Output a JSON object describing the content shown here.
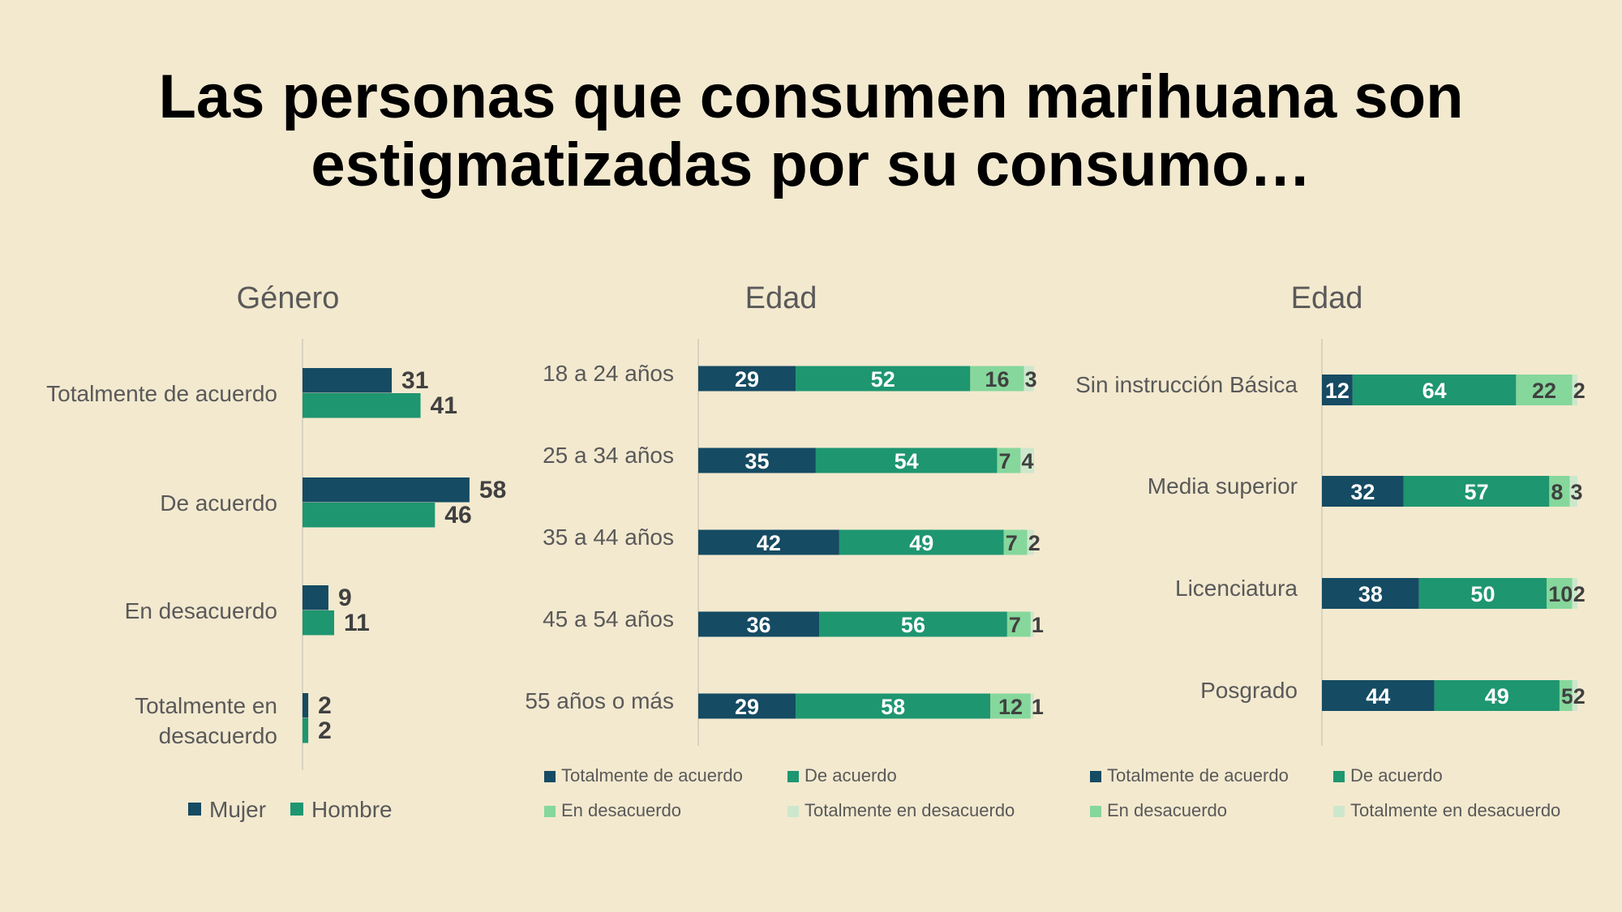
{
  "title": {
    "line1": "Las personas que consumen marihuana son",
    "line2": "estigmatizadas por su consumo…"
  },
  "colors": {
    "dark": "#154b63",
    "green": "#1e9670",
    "light": "#86d79c",
    "pale": "#cde7cc",
    "axis": "#d9d2bf",
    "label": "#595959",
    "value": "#404040",
    "white": "#ffffff"
  },
  "chart_data": [
    {
      "type": "bar",
      "orientation": "horizontal",
      "title": "Género",
      "categories": [
        "Totalmente de acuerdo",
        "De acuerdo",
        "En desacuerdo",
        "Totalmente en desacuerdo"
      ],
      "series": [
        {
          "name": "Mujer",
          "values": [
            31,
            58,
            9,
            2
          ]
        },
        {
          "name": "Hombre",
          "values": [
            41,
            46,
            11,
            2
          ]
        }
      ],
      "xlim": [
        0,
        100
      ],
      "legend": "bottom"
    },
    {
      "type": "bar",
      "orientation": "horizontal",
      "stacked": true,
      "title": "Edad",
      "categories": [
        "18 a 24 años",
        "25 a 34 años",
        "35 a 44 años",
        "45 a 54 años",
        "55 años o más"
      ],
      "series": [
        {
          "name": "Totalmente de acuerdo",
          "values": [
            29,
            35,
            42,
            36,
            29
          ]
        },
        {
          "name": "De acuerdo",
          "values": [
            52,
            54,
            49,
            56,
            58
          ]
        },
        {
          "name": "En desacuerdo",
          "values": [
            16,
            7,
            7,
            7,
            12
          ]
        },
        {
          "name": "Totalmente en desacuerdo",
          "values": [
            3,
            4,
            2,
            1,
            1
          ]
        }
      ],
      "legend": "bottom"
    },
    {
      "type": "bar",
      "orientation": "horizontal",
      "stacked": true,
      "title": "Edad",
      "categories": [
        "Sin instrucción Básica",
        "Media superior",
        "Licenciatura",
        "Posgrado"
      ],
      "series": [
        {
          "name": "Totalmente de acuerdo",
          "values": [
            12,
            32,
            38,
            44
          ]
        },
        {
          "name": "De acuerdo",
          "values": [
            64,
            57,
            50,
            49
          ]
        },
        {
          "name": "En desacuerdo",
          "values": [
            22,
            8,
            10,
            5
          ]
        },
        {
          "name": "Totalmente en desacuerdo",
          "values": [
            2,
            3,
            2,
            2
          ]
        }
      ],
      "legend": "bottom"
    }
  ]
}
